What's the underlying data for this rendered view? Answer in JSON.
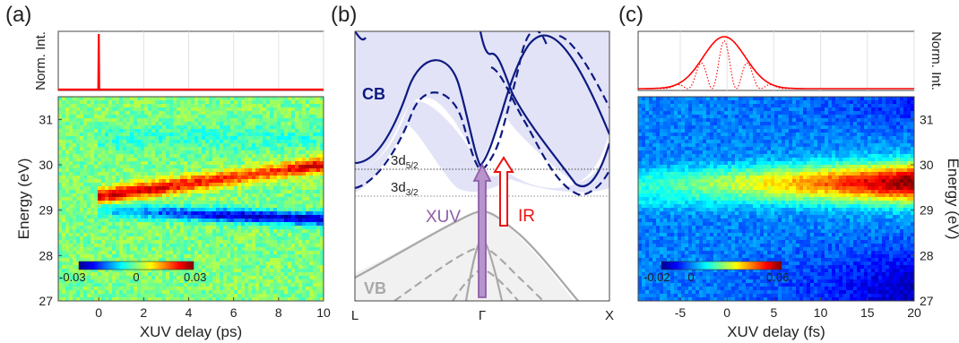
{
  "chart_data": [
    {
      "type": "heatmap",
      "panel_label": "(a)",
      "top_panel": {
        "ylabel": "Norm. Int.",
        "trace_color": "#ff0000",
        "trace": [
          [
            -1.8,
            0.0
          ],
          [
            -0.02,
            0.0
          ],
          [
            0.0,
            1.0
          ],
          [
            0.02,
            0.0
          ],
          [
            10.0,
            0.0
          ]
        ]
      },
      "xlabel": "XUV delay (ps)",
      "ylabel": "Energy (eV)",
      "xlim": [
        -1.8,
        10
      ],
      "ylim": [
        27,
        31.5
      ],
      "x_ticks": [
        "0",
        "2",
        "4",
        "6",
        "8",
        "10"
      ],
      "x_tick_values": [
        0,
        2,
        4,
        6,
        8,
        10
      ],
      "y_ticks": [
        "27",
        "28",
        "29",
        "30",
        "31"
      ],
      "y_tick_values": [
        27,
        28,
        29,
        30,
        31
      ],
      "colorbar": {
        "min_label": "-0.03",
        "mid_label": "0",
        "max_label": "0.03",
        "range": [
          -0.03,
          0.03
        ]
      },
      "features": [
        {
          "kind": "positive",
          "x": [
            0,
            10
          ],
          "energy_start": 29.3,
          "energy_end": 30.0,
          "peak": 0.03
        },
        {
          "kind": "negative",
          "x": [
            0,
            10
          ],
          "energy_start": 29.0,
          "energy_end": 28.8,
          "peak": -0.025
        }
      ]
    },
    {
      "type": "diagram",
      "panel_label": "(b)",
      "x_ticks": [
        "L",
        "Γ",
        "X"
      ],
      "region_labels": {
        "cb": "CB",
        "vb": "VB"
      },
      "levels": [
        {
          "label_base": "3d",
          "label_sub": "5/2",
          "energy_frac": 0.62
        },
        {
          "label_base": "3d",
          "label_sub": "3/2",
          "energy_frac": 0.55
        }
      ],
      "arrows": [
        {
          "label": "XUV",
          "color": "#8f5fa8"
        },
        {
          "label": "IR",
          "color": "#ee1111"
        }
      ],
      "colors": {
        "cb_fill": "#e2e3f7",
        "cb_line": "#0d1a80",
        "vb_fill": "#f1f1f1",
        "vb_line": "#a8a8a8"
      }
    },
    {
      "type": "heatmap",
      "panel_label": "(c)",
      "top_panel": {
        "ylabel": "Norm. Int.",
        "envelope_color": "#ff0000",
        "envelope_center_fs": -0.3,
        "envelope_sigma_fs": 3.2,
        "carrier_period_fs": 2.6
      },
      "xlabel": "XUV delay (fs)",
      "ylabel": "Energy (eV)",
      "xlim": [
        -9.5,
        20
      ],
      "ylim": [
        27,
        31.5
      ],
      "x_ticks": [
        "-5",
        "0",
        "5",
        "10",
        "15",
        "20"
      ],
      "x_tick_values": [
        -5,
        0,
        5,
        10,
        15,
        20
      ],
      "y_ticks": [
        "27",
        "28",
        "29",
        "30",
        "31"
      ],
      "y_tick_values": [
        27,
        28,
        29,
        30,
        31
      ],
      "colorbar": {
        "min_label": "-0.02",
        "mid_label": "0",
        "max_label": "0.06",
        "range": [
          -0.02,
          0.06
        ]
      },
      "features": [
        {
          "kind": "positive",
          "x": [
            -9.5,
            20
          ],
          "energy_center": 29.6,
          "peak": 0.06
        }
      ]
    }
  ]
}
